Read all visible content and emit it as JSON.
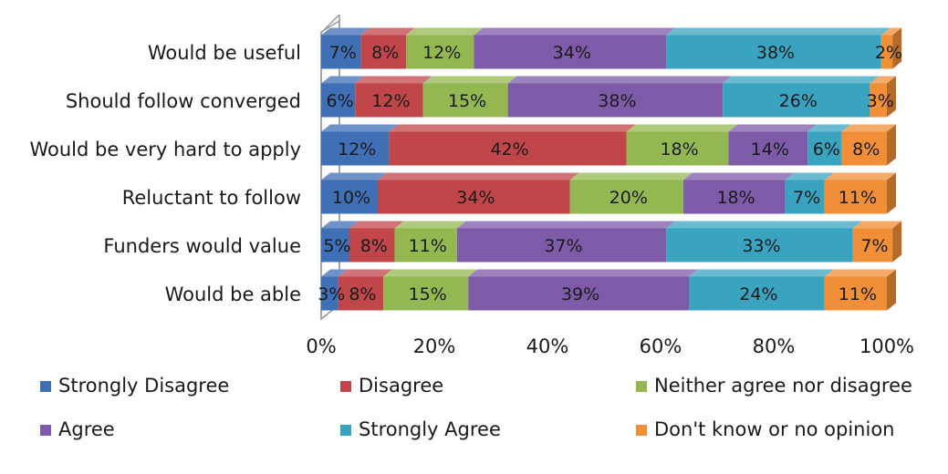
{
  "chart_data": {
    "type": "bar",
    "orientation": "horizontal",
    "stacked": "100%",
    "style": "3d",
    "categories": [
      "Would be useful",
      "Should follow converged",
      "Would be very hard to apply",
      "Reluctant to follow",
      "Funders would value",
      "Would be able"
    ],
    "series": [
      {
        "name": "Strongly Disagree",
        "color": "#3f6fb5",
        "values": [
          7,
          6,
          12,
          10,
          5,
          3
        ],
        "labels": [
          "7%",
          "6%",
          "12%",
          "10%",
          "5%",
          "3%"
        ]
      },
      {
        "name": "Disagree",
        "color": "#c0464a",
        "values": [
          8,
          12,
          42,
          34,
          8,
          8
        ],
        "labels": [
          "8%",
          "12%",
          "42%",
          "34%",
          "8%",
          "8%"
        ]
      },
      {
        "name": "Neither agree nor disagree",
        "color": "#94b851",
        "values": [
          12,
          15,
          18,
          20,
          11,
          15
        ],
        "labels": [
          "12%",
          "15%",
          "18%",
          "20%",
          "11%",
          "15%"
        ]
      },
      {
        "name": "Agree",
        "color": "#7d5ba8",
        "values": [
          34,
          38,
          14,
          18,
          37,
          39
        ],
        "labels": [
          "34%",
          "38%",
          "14%",
          "18%",
          "37%",
          "39%"
        ]
      },
      {
        "name": "Strongly Agree",
        "color": "#3aa3c0",
        "values": [
          38,
          26,
          6,
          7,
          33,
          24
        ],
        "labels": [
          "38%",
          "26%",
          "6%",
          "7%",
          "33%",
          "24%"
        ]
      },
      {
        "name": "Don't know or no opinion",
        "color": "#f08f38",
        "values": [
          2,
          3,
          8,
          11,
          7,
          11
        ],
        "labels": [
          "2%",
          "3%",
          "8%",
          "11%",
          "7%",
          "11%"
        ]
      }
    ],
    "x_ticks": [
      "0%",
      "20%",
      "40%",
      "60%",
      "80%",
      "100%"
    ],
    "xlim": [
      0,
      100
    ],
    "grid": false,
    "legend_position": "bottom"
  }
}
